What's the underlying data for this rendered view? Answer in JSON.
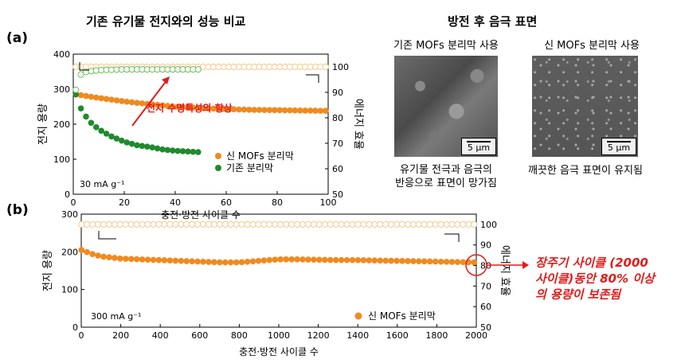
{
  "headers": {
    "left": "기존 유기물 전지와의 성능 비교",
    "right": "방전 후 음극 표면"
  },
  "panel_labels": {
    "a": "(a)",
    "b": "(b)"
  },
  "sem": {
    "old_title": "기존 MOFs 분리막 사용",
    "new_title": "신 MOFs 분리막 사용",
    "scale": "5 μm",
    "old_caption_1": "유기물 전극과 음극의",
    "old_caption_2": "반응으로 표면이 망가짐",
    "new_caption": "깨끗한 음극 표면이 유지됨"
  },
  "colors": {
    "new_mofs": "#f08a1e",
    "old_sep": "#1f8a2e",
    "eff_new": "#f3c98b",
    "eff_old": "#6cbf5a",
    "annotation": "#e21b1b"
  },
  "chart_data": [
    {
      "type": "scatter",
      "xlabel": "충전·방전 사이클 수",
      "ylabel": "전지 용량",
      "ylabel_right": "에너지 효율",
      "xlim": [
        0,
        100
      ],
      "ylim": [
        0,
        400
      ],
      "y2lim": [
        50,
        105
      ],
      "xticks": [
        0,
        20,
        40,
        60,
        80,
        100
      ],
      "yticks": [
        0,
        100,
        200,
        300,
        400
      ],
      "y2ticks": [
        50,
        60,
        70,
        80,
        90,
        100
      ],
      "condition": "30 mA g⁻¹",
      "annotation": "전지 수명특성의 향상",
      "series": [
        {
          "name": "신 MOFs 분리막",
          "axis": "left",
          "style": "filled",
          "x": [
            1,
            10,
            20,
            30,
            40,
            50,
            60,
            70,
            80,
            90,
            100
          ],
          "y": [
            285,
            275,
            265,
            257,
            250,
            246,
            243,
            241,
            240,
            239,
            238
          ]
        },
        {
          "name": "기존 분리막",
          "axis": "left",
          "style": "filled",
          "x": [
            1,
            3,
            6,
            10,
            15,
            20,
            25,
            30,
            35,
            40,
            45,
            50
          ],
          "y": [
            285,
            245,
            210,
            185,
            165,
            150,
            140,
            135,
            128,
            124,
            122,
            120
          ]
        },
        {
          "axis": "right",
          "style": "hollow",
          "group": "new",
          "x": [
            1,
            50,
            100
          ],
          "y": [
            100,
            100,
            100
          ]
        },
        {
          "axis": "right",
          "style": "hollow",
          "group": "old",
          "x": [
            1,
            2,
            3,
            5,
            8,
            12,
            20,
            30,
            40,
            50
          ],
          "y": [
            91,
            96,
            97,
            98,
            98.5,
            98.8,
            99,
            99,
            99,
            99
          ]
        }
      ]
    },
    {
      "type": "scatter",
      "xlabel": "충전·방전 사이클 수",
      "ylabel": "전지 용량",
      "ylabel_right": "에너지 효율",
      "xlim": [
        0,
        2000
      ],
      "ylim": [
        0,
        300
      ],
      "y2lim": [
        50,
        105
      ],
      "xticks": [
        0,
        200,
        400,
        600,
        800,
        1000,
        1200,
        1400,
        1600,
        1800,
        2000
      ],
      "yticks": [
        0,
        100,
        200,
        300
      ],
      "y2ticks": [
        50,
        60,
        70,
        80,
        90,
        100
      ],
      "condition": "300 mA g⁻¹",
      "series": [
        {
          "name": "신 MOFs 분리막",
          "axis": "left",
          "style": "filled",
          "x": [
            1,
            50,
            100,
            200,
            300,
            400,
            500,
            600,
            700,
            800,
            900,
            1000,
            1100,
            1200,
            1300,
            1400,
            1500,
            1600,
            1700,
            1800,
            1900,
            2000
          ],
          "y": [
            205,
            195,
            188,
            182,
            180,
            178,
            176,
            174,
            172,
            172,
            176,
            180,
            180,
            179,
            178,
            178,
            177,
            176,
            175,
            174,
            173,
            172
          ]
        },
        {
          "axis": "right",
          "style": "hollow",
          "group": "new",
          "x": [
            1,
            1000,
            2000
          ],
          "y": [
            100,
            100,
            100
          ]
        }
      ],
      "note": "장주기 사이클 (2000 사이클)동안 80% 이상의 용량이 보존됨"
    }
  ],
  "note_lines": [
    "장주기 사이클 (2000",
    "사이클)동안 80% 이상",
    "의 용량이 보존됨"
  ]
}
